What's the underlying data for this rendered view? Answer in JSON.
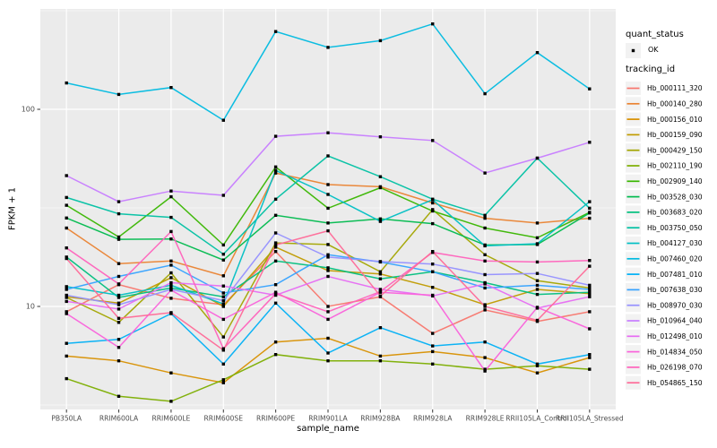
{
  "figure": {
    "y_axis": {
      "title": "FPKM + 1"
    },
    "x_axis": {
      "title": "sample_name"
    },
    "legend": {
      "quant_title": "quant_status",
      "quant_items": [
        {
          "label": "OK"
        }
      ],
      "tracking_title": "tracking_id"
    },
    "style": {
      "panel_bg": "#EBEBEB",
      "grid_color": "#FFFFFF",
      "axis_text_color": "#4D4D4D",
      "tick_color": "#333333",
      "legend_key_bg": "#F2F2F2",
      "point_color": "#000000"
    }
  },
  "chart_data": {
    "type": "line",
    "title": "",
    "xlabel": "sample_name",
    "ylabel": "FPKM + 1",
    "y_scale": "log10",
    "ylim": [
      3,
      323
    ],
    "y_major_ticks": [
      10,
      100
    ],
    "y_minor_ticks": [
      3.1623,
      31.623,
      316.23
    ],
    "grid": true,
    "legend_position": "right",
    "quant_status": "OK",
    "x_categories": [
      "PB350LA",
      "RRIM600LA",
      "RRIM600LE",
      "RRIM600SE",
      "RRIM600PE",
      "RRIM901LA",
      "RRIM928BA",
      "RRIM928LA",
      "RRIM928LE",
      "RRII105LA_Control",
      "RRII105LA_Stressed"
    ],
    "series": [
      {
        "name": "Hb_000111_320",
        "color": "#F8766D",
        "values": [
          9.4,
          12.9,
          11.0,
          10.2,
          19.0,
          10.0,
          11.2,
          7.3,
          9.6,
          8.4,
          9.4
        ]
      },
      {
        "name": "Hb_000140_280",
        "color": "#EA8331",
        "values": [
          25.0,
          16.5,
          17.0,
          14.3,
          47.5,
          41.5,
          40.5,
          33.5,
          28.0,
          26.5,
          28.0
        ]
      },
      {
        "name": "Hb_000156_010",
        "color": "#D89000",
        "values": [
          5.6,
          5.3,
          4.6,
          4.1,
          6.6,
          6.9,
          5.6,
          5.9,
          5.5,
          4.6,
          5.5
        ]
      },
      {
        "name": "Hb_000159_090",
        "color": "#C09B00",
        "values": [
          11.2,
          10.4,
          14.0,
          10.0,
          20.0,
          15.2,
          14.6,
          12.5,
          10.2,
          12.2,
          11.6
        ]
      },
      {
        "name": "Hb_000429_150",
        "color": "#A3A500",
        "values": [
          11.1,
          8.3,
          14.8,
          7.0,
          21.0,
          20.6,
          15.0,
          31.0,
          18.3,
          13.5,
          12.4
        ]
      },
      {
        "name": "Hb_002110_190",
        "color": "#7CAE00",
        "values": [
          4.3,
          3.5,
          3.3,
          4.25,
          5.7,
          5.3,
          5.3,
          5.1,
          4.8,
          5.0,
          4.8
        ]
      },
      {
        "name": "Hb_002909_140",
        "color": "#39B600",
        "values": [
          32.6,
          22.5,
          36.0,
          20.5,
          51.0,
          31.5,
          40.0,
          30.5,
          25.0,
          22.3,
          30.0
        ]
      },
      {
        "name": "Hb_003528_030",
        "color": "#00BB4E",
        "values": [
          28.1,
          21.9,
          22.0,
          17.2,
          29.0,
          26.5,
          27.8,
          26.3,
          20.5,
          20.6,
          29.8
        ]
      },
      {
        "name": "Hb_003683_020",
        "color": "#00BF7D",
        "values": [
          17.8,
          11.1,
          12.4,
          11.2,
          17.0,
          15.7,
          13.8,
          15.0,
          13.2,
          11.5,
          11.8
        ]
      },
      {
        "name": "Hb_003750_050",
        "color": "#00C1A3",
        "values": [
          35.7,
          29.5,
          28.3,
          18.4,
          35.0,
          58.0,
          45.5,
          35.0,
          29.0,
          56.5,
          31.5
        ]
      },
      {
        "name": "Hb_004127_030",
        "color": "#00BFC4",
        "values": [
          12.6,
          11.4,
          12.8,
          10.3,
          49.0,
          37.0,
          27.0,
          34.8,
          20.3,
          20.8,
          34.0
        ]
      },
      {
        "name": "Hb_007460_020",
        "color": "#00BAE0",
        "values": [
          136,
          119,
          129,
          88,
          248,
          206,
          223,
          271,
          120,
          194,
          127
        ]
      },
      {
        "name": "Hb_007481_010",
        "color": "#00B0F6",
        "values": [
          6.5,
          6.8,
          9.2,
          5.1,
          10.4,
          5.8,
          7.8,
          6.3,
          6.6,
          5.1,
          5.7
        ]
      },
      {
        "name": "Hb_007638_030",
        "color": "#35A2FF",
        "values": [
          12.2,
          14.2,
          16.2,
          11.7,
          12.9,
          18.3,
          16.8,
          15.0,
          12.4,
          12.8,
          12.2
        ]
      },
      {
        "name": "Hb_008970_030",
        "color": "#9590FF",
        "values": [
          11.4,
          10.2,
          12.2,
          10.7,
          23.6,
          17.8,
          16.9,
          16.4,
          14.5,
          14.7,
          12.8
        ]
      },
      {
        "name": "Hb_010964_040",
        "color": "#C77CFF",
        "values": [
          46.1,
          34.0,
          38.5,
          36.6,
          73.0,
          76.0,
          72.5,
          69.5,
          47.5,
          56.5,
          68.0
        ]
      },
      {
        "name": "Hb_012498_010",
        "color": "#E76BF3",
        "values": [
          10.6,
          9.7,
          13.2,
          12.7,
          11.4,
          14.2,
          12.2,
          11.3,
          13.0,
          9.8,
          11.2
        ]
      },
      {
        "name": "Hb_014834_050",
        "color": "#FA62DB",
        "values": [
          9.2,
          6.2,
          12.1,
          8.6,
          11.8,
          8.6,
          11.8,
          11.4,
          4.7,
          9.9,
          7.7
        ]
      },
      {
        "name": "Hb_026198_070",
        "color": "#FF62BC",
        "values": [
          19.8,
          13.0,
          24.0,
          6.1,
          11.6,
          9.4,
          11.9,
          18.8,
          17.0,
          16.8,
          17.1
        ]
      },
      {
        "name": "Hb_054865_150",
        "color": "#FF6A98",
        "values": [
          17.5,
          8.7,
          9.3,
          6.0,
          20.5,
          24.2,
          11.3,
          19.0,
          10.0,
          8.5,
          16.0
        ]
      }
    ]
  }
}
